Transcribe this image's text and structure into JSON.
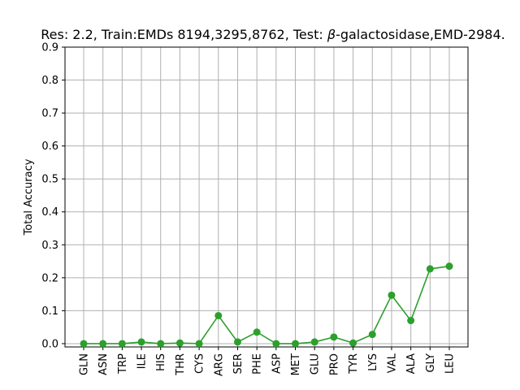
{
  "chart_data": {
    "type": "line",
    "title_prefix": "Res: 2.2,  Train:EMDs 8194,3295,8762, Test: ",
    "title_symbol": "β",
    "title_suffix": "-galactosidase,EMD-2984.",
    "xlabel": "",
    "ylabel": "Total Accuracy",
    "categories": [
      "GLN",
      "ASN",
      "TRP",
      "ILE",
      "HIS",
      "THR",
      "CYS",
      "ARG",
      "SER",
      "PHE",
      "ASP",
      "MET",
      "GLU",
      "PRO",
      "TYR",
      "LYS",
      "VAL",
      "ALA",
      "GLY",
      "LEU"
    ],
    "yticks": [
      "0.0",
      "0.1",
      "0.2",
      "0.3",
      "0.4",
      "0.5",
      "0.6",
      "0.7",
      "0.8",
      "0.9"
    ],
    "ylim": [
      -0.01,
      0.9
    ],
    "grid": true,
    "series": [
      {
        "values": [
          0.0,
          0.0,
          0.0,
          0.005,
          0.0,
          0.002,
          0.0,
          0.085,
          0.005,
          0.035,
          0.0,
          0.0,
          0.005,
          0.02,
          0.002,
          0.028,
          0.147,
          0.07,
          0.227,
          0.235
        ],
        "color": "#2ca02c"
      }
    ]
  }
}
